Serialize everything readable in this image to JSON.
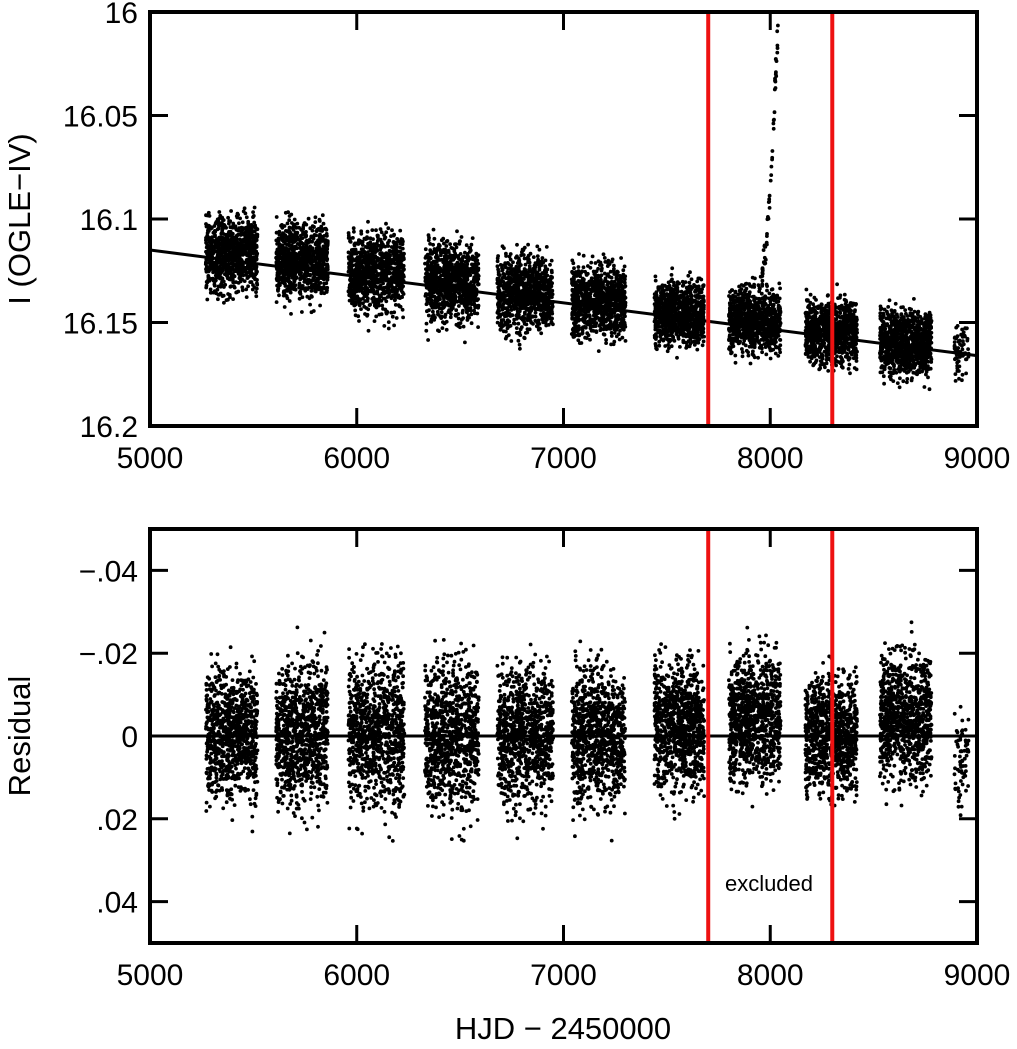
{
  "colors": {
    "points": "#000000",
    "model_line": "#000000",
    "markers": "#ee1111",
    "axes": "#000000"
  },
  "chart_data": [
    {
      "type": "scatter",
      "title": "",
      "xlabel": "",
      "ylabel": "I (OGLE−IV)",
      "xlim": [
        5000,
        9000
      ],
      "ylim": [
        16.2,
        16.0
      ],
      "y_inverted": true,
      "grid": false,
      "legend": "none",
      "xticks": [
        5000,
        6000,
        7000,
        8000,
        9000
      ],
      "xtick_labels": [
        "5000",
        "6000",
        "7000",
        "8000",
        "9000"
      ],
      "yticks": [
        16.0,
        16.05,
        16.1,
        16.15,
        16.2
      ],
      "ytick_labels": [
        "16",
        "16.05",
        "16.1",
        "16.15",
        "16.2"
      ],
      "trend_line": {
        "x": [
          5000,
          9000
        ],
        "y": [
          16.115,
          16.166
        ]
      },
      "vertical_lines": [
        7700,
        8300
      ],
      "seasons": [
        {
          "x_range": [
            5270,
            5520
          ],
          "y_center": 16.117,
          "y_spread": 0.016
        },
        {
          "x_range": [
            5610,
            5860
          ],
          "y_center": 16.12,
          "y_spread": 0.016
        },
        {
          "x_range": [
            5960,
            6230
          ],
          "y_center": 16.126,
          "y_spread": 0.017
        },
        {
          "x_range": [
            6330,
            6590
          ],
          "y_center": 16.131,
          "y_spread": 0.017
        },
        {
          "x_range": [
            6680,
            6950
          ],
          "y_center": 16.136,
          "y_spread": 0.017
        },
        {
          "x_range": [
            7040,
            7300
          ],
          "y_center": 16.14,
          "y_spread": 0.016
        },
        {
          "x_range": [
            7440,
            7680
          ],
          "y_center": 16.146,
          "y_spread": 0.014
        },
        {
          "x_range": [
            7800,
            8050
          ],
          "y_center": 16.149,
          "y_spread": 0.014
        },
        {
          "x_range": [
            8170,
            8420
          ],
          "y_center": 16.155,
          "y_spread": 0.014
        },
        {
          "x_range": [
            8530,
            8780
          ],
          "y_center": 16.16,
          "y_spread": 0.014
        },
        {
          "x_range": [
            8890,
            8960
          ],
          "y_center": 16.163,
          "y_spread": 0.01
        }
      ],
      "flare": {
        "x": [
          7960,
          8040
        ],
        "y": [
          16.125,
          16.0
        ]
      }
    },
    {
      "type": "scatter",
      "title": "",
      "xlabel": "HJD − 2450000",
      "ylabel": "Residual",
      "xlim": [
        5000,
        9000
      ],
      "ylim": [
        0.05,
        -0.05
      ],
      "y_inverted": true,
      "grid": false,
      "legend": "none",
      "xticks": [
        5000,
        6000,
        7000,
        8000,
        9000
      ],
      "xtick_labels": [
        "5000",
        "6000",
        "7000",
        "8000",
        "9000"
      ],
      "yticks": [
        -0.04,
        -0.02,
        0,
        0.02,
        0.04
      ],
      "ytick_labels": [
        "−.04",
        "−.02",
        "0",
        ".02",
        ".04"
      ],
      "zero_line": 0,
      "vertical_lines": [
        7700,
        8300
      ],
      "annotation": "excluded",
      "seasons": [
        {
          "x_range": [
            5270,
            5520
          ],
          "y_center": 0.0,
          "y_spread": 0.014
        },
        {
          "x_range": [
            5610,
            5860
          ],
          "y_center": 0.0,
          "y_spread": 0.015
        },
        {
          "x_range": [
            5960,
            6230
          ],
          "y_center": 0.0,
          "y_spread": 0.016
        },
        {
          "x_range": [
            6330,
            6590
          ],
          "y_center": 0.0,
          "y_spread": 0.016
        },
        {
          "x_range": [
            6680,
            6950
          ],
          "y_center": 0.0,
          "y_spread": 0.015
        },
        {
          "x_range": [
            7040,
            7300
          ],
          "y_center": 0.0,
          "y_spread": 0.015
        },
        {
          "x_range": [
            7440,
            7680
          ],
          "y_center": -0.002,
          "y_spread": 0.014
        },
        {
          "x_range": [
            7800,
            8050
          ],
          "y_center": -0.004,
          "y_spread": 0.014
        },
        {
          "x_range": [
            8170,
            8420
          ],
          "y_center": 0.0,
          "y_spread": 0.013
        },
        {
          "x_range": [
            8530,
            8780
          ],
          "y_center": -0.004,
          "y_spread": 0.014
        },
        {
          "x_range": [
            8890,
            8960
          ],
          "y_center": 0.006,
          "y_spread": 0.01
        }
      ]
    }
  ]
}
